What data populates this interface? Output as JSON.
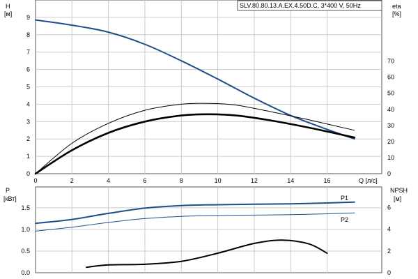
{
  "title": "SLV.80.80.13.A.EX.4.50D.C, 3*400 V, 50Hz",
  "chart_data": [
    {
      "type": "line",
      "panel": "top",
      "left_axis": {
        "label": "H",
        "unit": "[м]",
        "range": [
          0,
          10
        ],
        "ticks": [
          "0",
          "1",
          "2",
          "3",
          "4",
          "5",
          "6",
          "7",
          "8",
          "9"
        ]
      },
      "right_axis": {
        "label": "eta",
        "unit": "[%]",
        "range": [
          0,
          108
        ],
        "ticks": [
          "0",
          "10",
          "20",
          "30",
          "40",
          "50",
          "60",
          "70"
        ]
      },
      "x_axis": {
        "label": "Q [л/с]",
        "range": [
          0,
          19
        ],
        "ticks": [
          "0",
          "2",
          "4",
          "6",
          "8",
          "10",
          "12",
          "14",
          "16"
        ]
      },
      "grid": true,
      "series": [
        {
          "name": "H",
          "axis": "left",
          "color": "#1f4e8a",
          "width": 2,
          "x": [
            0,
            2,
            4,
            6,
            8,
            10,
            12,
            14,
            16,
            17.5
          ],
          "y": [
            8.85,
            8.55,
            8.15,
            7.45,
            6.5,
            5.45,
            4.35,
            3.35,
            2.55,
            2.0
          ]
        },
        {
          "name": "eta",
          "axis": "left",
          "color": "#000000",
          "width": 1,
          "x": [
            0,
            2,
            4,
            6,
            8,
            9.5,
            11,
            13,
            15,
            17.5
          ],
          "y": [
            0,
            1.75,
            2.9,
            3.65,
            4.0,
            4.05,
            3.95,
            3.55,
            3.1,
            2.5
          ]
        },
        {
          "name": "eta_total",
          "axis": "left",
          "color": "#000000",
          "width": 2.6,
          "x": [
            0,
            2,
            4,
            6,
            8,
            9.5,
            11,
            13,
            15,
            17.5
          ],
          "y": [
            0,
            1.35,
            2.35,
            3.0,
            3.35,
            3.42,
            3.35,
            3.05,
            2.65,
            2.08
          ]
        }
      ]
    },
    {
      "type": "line",
      "panel": "bottom",
      "left_axis": {
        "label": "P",
        "unit": "[кВт]",
        "range": [
          0,
          1.98
        ],
        "ticks": [
          "0.0",
          "0.5",
          "1.0",
          "1.5"
        ]
      },
      "right_axis": {
        "label": "NPSH",
        "unit": "[м]",
        "range": [
          0,
          7.9
        ],
        "ticks": [
          "0",
          "2",
          "4",
          "6"
        ]
      },
      "x_axis": {
        "range": [
          0,
          19
        ]
      },
      "grid": true,
      "series": [
        {
          "name": "P1",
          "axis": "left",
          "color": "#1f4e8a",
          "width": 2,
          "x": [
            0,
            2,
            4,
            6,
            8,
            10,
            12,
            14,
            16,
            17.5
          ],
          "y": [
            1.14,
            1.23,
            1.37,
            1.49,
            1.55,
            1.57,
            1.58,
            1.59,
            1.61,
            1.63
          ]
        },
        {
          "name": "P2",
          "axis": "left",
          "color": "#1f4e8a",
          "width": 1,
          "x": [
            0,
            2,
            4,
            6,
            8,
            10,
            12,
            14,
            16,
            17.5
          ],
          "y": [
            0.96,
            1.05,
            1.16,
            1.25,
            1.3,
            1.32,
            1.33,
            1.34,
            1.36,
            1.38
          ]
        },
        {
          "name": "NPSH",
          "axis": "right",
          "color": "#000000",
          "width": 2,
          "x": [
            2.8,
            4,
            6,
            8,
            10,
            12,
            13.5,
            15,
            16
          ],
          "y": [
            0.5,
            0.72,
            0.78,
            1.05,
            1.8,
            2.7,
            3.0,
            2.65,
            1.8
          ]
        }
      ]
    }
  ],
  "labels": {
    "top_left_label": "H",
    "top_left_unit": "[м]",
    "top_right_label": "eta",
    "top_right_unit": "[%]",
    "x_label": "Q [л/с]",
    "bottom_left_label": "P",
    "bottom_left_unit": "[кВт]",
    "bottom_right_label": "NPSH",
    "bottom_right_unit": "[м]",
    "series_p1": "P1",
    "series_p2": "P2"
  },
  "colors": {
    "grid": "#cccccc",
    "axis": "#555555",
    "blue": "#1f4e8a",
    "black": "#000000"
  }
}
